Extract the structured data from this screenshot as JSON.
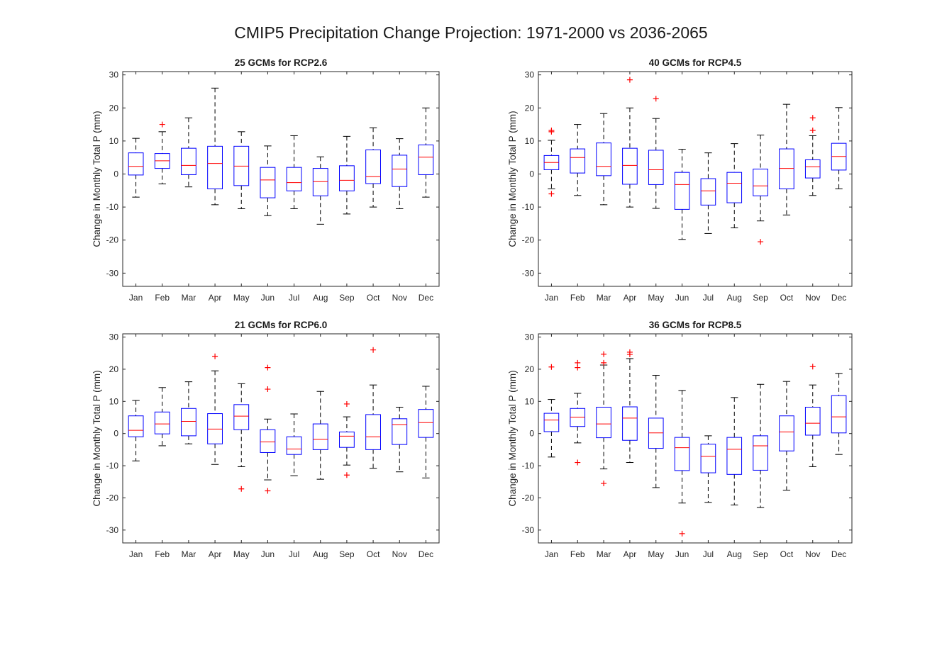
{
  "figure": {
    "title": "CMIP5 Precipitation Change Projection: 1971-2000 vs 2036-2065"
  },
  "colors": {
    "box": "#0000ff",
    "median": "#ff0000",
    "whisker": "#000000",
    "outlier": "#ff0000",
    "axis": "#262626"
  },
  "chart_data": [
    {
      "type": "box",
      "title": "25 GCMs for RCP2.6",
      "ylabel": "Change in Monthly Total P (mm)",
      "ylim": [
        -34,
        31
      ],
      "yticks": [
        -30,
        -20,
        -10,
        0,
        10,
        20,
        30
      ],
      "categories": [
        "Jan",
        "Feb",
        "Mar",
        "Apr",
        "May",
        "Jun",
        "Jul",
        "Aug",
        "Sep",
        "Oct",
        "Nov",
        "Dec"
      ],
      "boxes": [
        {
          "low": -7,
          "q1": -0.3,
          "median": 2.3,
          "q3": 6.4,
          "high": 10.8,
          "outliers": []
        },
        {
          "low": -3,
          "q1": 1.7,
          "median": 4,
          "q3": 6.2,
          "high": 12.8,
          "outliers": [
            15
          ]
        },
        {
          "low": -3.9,
          "q1": -0.2,
          "median": 2.6,
          "q3": 7.8,
          "high": 17,
          "outliers": []
        },
        {
          "low": -9.3,
          "q1": -4.5,
          "median": 3.2,
          "q3": 8.4,
          "high": 26,
          "outliers": []
        },
        {
          "low": -10.5,
          "q1": -3.5,
          "median": 2.4,
          "q3": 8.4,
          "high": 12.8,
          "outliers": []
        },
        {
          "low": -12.6,
          "q1": -7.2,
          "median": -1.8,
          "q3": 2,
          "high": 8.5,
          "outliers": []
        },
        {
          "low": -10.5,
          "q1": -5.1,
          "median": -2.6,
          "q3": 2,
          "high": 11.6,
          "outliers": []
        },
        {
          "low": -15.2,
          "q1": -6.6,
          "median": -2.3,
          "q3": 1.7,
          "high": 5.2,
          "outliers": []
        },
        {
          "low": -12.1,
          "q1": -5.1,
          "median": -1.9,
          "q3": 2.5,
          "high": 11.4,
          "outliers": []
        },
        {
          "low": -10,
          "q1": -2.9,
          "median": -0.8,
          "q3": 7.3,
          "high": 14,
          "outliers": []
        },
        {
          "low": -10.5,
          "q1": -3.8,
          "median": 1.5,
          "q3": 5.7,
          "high": 10.7,
          "outliers": []
        },
        {
          "low": -7,
          "q1": -0.2,
          "median": 5.1,
          "q3": 8.8,
          "high": 20,
          "outliers": []
        }
      ]
    },
    {
      "type": "box",
      "title": "40 GCMs for RCP4.5",
      "ylabel": "Change in Monthly Total P (mm)",
      "ylim": [
        -34,
        31
      ],
      "yticks": [
        -30,
        -20,
        -10,
        0,
        10,
        20,
        30
      ],
      "categories": [
        "Jan",
        "Feb",
        "Mar",
        "Apr",
        "May",
        "Jun",
        "Jul",
        "Aug",
        "Sep",
        "Oct",
        "Nov",
        "Dec"
      ],
      "boxes": [
        {
          "low": -4.5,
          "q1": 1.3,
          "median": 3.5,
          "q3": 5.6,
          "high": 10.2,
          "outliers": [
            13.2,
            12.8,
            -6
          ]
        },
        {
          "low": -6.5,
          "q1": 0.3,
          "median": 5,
          "q3": 7.6,
          "high": 15,
          "outliers": []
        },
        {
          "low": -9.3,
          "q1": -0.5,
          "median": 2.3,
          "q3": 9.4,
          "high": 18.3,
          "outliers": []
        },
        {
          "low": -10,
          "q1": -3.1,
          "median": 2.6,
          "q3": 7.8,
          "high": 20,
          "outliers": [
            28.5
          ]
        },
        {
          "low": -10.4,
          "q1": -3.2,
          "median": 1.3,
          "q3": 7.2,
          "high": 16.8,
          "outliers": [
            22.8
          ]
        },
        {
          "low": -19.8,
          "q1": -10.7,
          "median": -3.2,
          "q3": 0.5,
          "high": 7.5,
          "outliers": []
        },
        {
          "low": -18,
          "q1": -9.4,
          "median": -5.1,
          "q3": -1.4,
          "high": 6.4,
          "outliers": []
        },
        {
          "low": -16.3,
          "q1": -8.7,
          "median": -2.8,
          "q3": 0.5,
          "high": 9.2,
          "outliers": []
        },
        {
          "low": -14.2,
          "q1": -6.6,
          "median": -3.6,
          "q3": 1.5,
          "high": 11.8,
          "outliers": [
            -20.5
          ]
        },
        {
          "low": -12.4,
          "q1": -4.5,
          "median": 1.7,
          "q3": 7.6,
          "high": 21.1,
          "outliers": []
        },
        {
          "low": -6.5,
          "q1": -1.2,
          "median": 2.2,
          "q3": 4.3,
          "high": 11.6,
          "outliers": [
            17,
            13.2
          ]
        },
        {
          "low": -4.5,
          "q1": 1.2,
          "median": 5.3,
          "q3": 9.3,
          "high": 20.1,
          "outliers": []
        }
      ]
    },
    {
      "type": "box",
      "title": "21 GCMs for RCP6.0",
      "ylabel": "Change in Monthly Total P (mm)",
      "ylim": [
        -34,
        31
      ],
      "yticks": [
        -30,
        -20,
        -10,
        0,
        10,
        20,
        30
      ],
      "categories": [
        "Jan",
        "Feb",
        "Mar",
        "Apr",
        "May",
        "Jun",
        "Jul",
        "Aug",
        "Sep",
        "Oct",
        "Nov",
        "Dec"
      ],
      "boxes": [
        {
          "low": -8.5,
          "q1": -1,
          "median": 1,
          "q3": 5.5,
          "high": 10.3,
          "outliers": []
        },
        {
          "low": -3.8,
          "q1": -0.1,
          "median": 3,
          "q3": 6.7,
          "high": 14.3,
          "outliers": []
        },
        {
          "low": -3.2,
          "q1": -0.7,
          "median": 3.8,
          "q3": 7.8,
          "high": 16.1,
          "outliers": []
        },
        {
          "low": -9.6,
          "q1": -3.2,
          "median": 1.4,
          "q3": 6.2,
          "high": 19.5,
          "outliers": [
            24
          ]
        },
        {
          "low": -10.3,
          "q1": 1.2,
          "median": 5.4,
          "q3": 9,
          "high": 15.5,
          "outliers": [
            -17.2
          ]
        },
        {
          "low": -14.4,
          "q1": -5.9,
          "median": -2.6,
          "q3": 1.2,
          "high": 4.5,
          "outliers": [
            20.5,
            13.8,
            -17.8
          ]
        },
        {
          "low": -13.1,
          "q1": -6.5,
          "median": -4.8,
          "q3": -1,
          "high": 6.1,
          "outliers": []
        },
        {
          "low": -14.2,
          "q1": -5,
          "median": -1.8,
          "q3": 3,
          "high": 13.1,
          "outliers": []
        },
        {
          "low": -9.8,
          "q1": -4.3,
          "median": -0.8,
          "q3": 0.5,
          "high": 5.2,
          "outliers": [
            9.2,
            -12.9
          ]
        },
        {
          "low": -10.8,
          "q1": -5,
          "median": -1,
          "q3": 5.9,
          "high": 15.1,
          "outliers": [
            26
          ]
        },
        {
          "low": -11.9,
          "q1": -3.4,
          "median": 2.8,
          "q3": 4.6,
          "high": 8.2,
          "outliers": []
        },
        {
          "low": -13.8,
          "q1": -1.2,
          "median": 3.4,
          "q3": 7.5,
          "high": 14.7,
          "outliers": []
        }
      ]
    },
    {
      "type": "box",
      "title": "36 GCMs for RCP8.5",
      "ylabel": "Change in Monthly Total P (mm)",
      "ylim": [
        -34,
        31
      ],
      "yticks": [
        -30,
        -20,
        -10,
        0,
        10,
        20,
        30
      ],
      "categories": [
        "Jan",
        "Feb",
        "Mar",
        "Apr",
        "May",
        "Jun",
        "Jul",
        "Aug",
        "Sep",
        "Oct",
        "Nov",
        "Dec"
      ],
      "boxes": [
        {
          "low": -7.3,
          "q1": 0.6,
          "median": 4.2,
          "q3": 6.3,
          "high": 10.6,
          "outliers": [
            20.7
          ]
        },
        {
          "low": -2.9,
          "q1": 2.2,
          "median": 5.1,
          "q3": 7.8,
          "high": 12.5,
          "outliers": [
            22,
            20.5,
            -9
          ]
        },
        {
          "low": -11,
          "q1": -1.3,
          "median": 3,
          "q3": 8.2,
          "high": 21.3,
          "outliers": [
            24.7,
            22,
            -15.5
          ]
        },
        {
          "low": -9,
          "q1": -2.1,
          "median": 4.8,
          "q3": 8.3,
          "high": 23.3,
          "outliers": [
            25.3,
            24.6
          ]
        },
        {
          "low": -16.8,
          "q1": -4.6,
          "median": 0.2,
          "q3": 4.8,
          "high": 18.1,
          "outliers": []
        },
        {
          "low": -21.6,
          "q1": -11.5,
          "median": -4.4,
          "q3": -1.2,
          "high": 13.4,
          "outliers": [
            -31.1
          ]
        },
        {
          "low": -21.4,
          "q1": -12.2,
          "median": -7.1,
          "q3": -3.3,
          "high": -0.7,
          "outliers": []
        },
        {
          "low": -22.2,
          "q1": -12.7,
          "median": -4.9,
          "q3": -1.2,
          "high": 11.2,
          "outliers": []
        },
        {
          "low": -23,
          "q1": -11.4,
          "median": -3.8,
          "q3": -0.7,
          "high": 15.3,
          "outliers": []
        },
        {
          "low": -17.6,
          "q1": -5.4,
          "median": 0.5,
          "q3": 5.5,
          "high": 16.2,
          "outliers": []
        },
        {
          "low": -10.3,
          "q1": -0.5,
          "median": 3.2,
          "q3": 8.2,
          "high": 15.1,
          "outliers": [
            20.8
          ]
        },
        {
          "low": -6.5,
          "q1": 0.2,
          "median": 5.2,
          "q3": 11.8,
          "high": 18.7,
          "outliers": []
        }
      ]
    }
  ]
}
